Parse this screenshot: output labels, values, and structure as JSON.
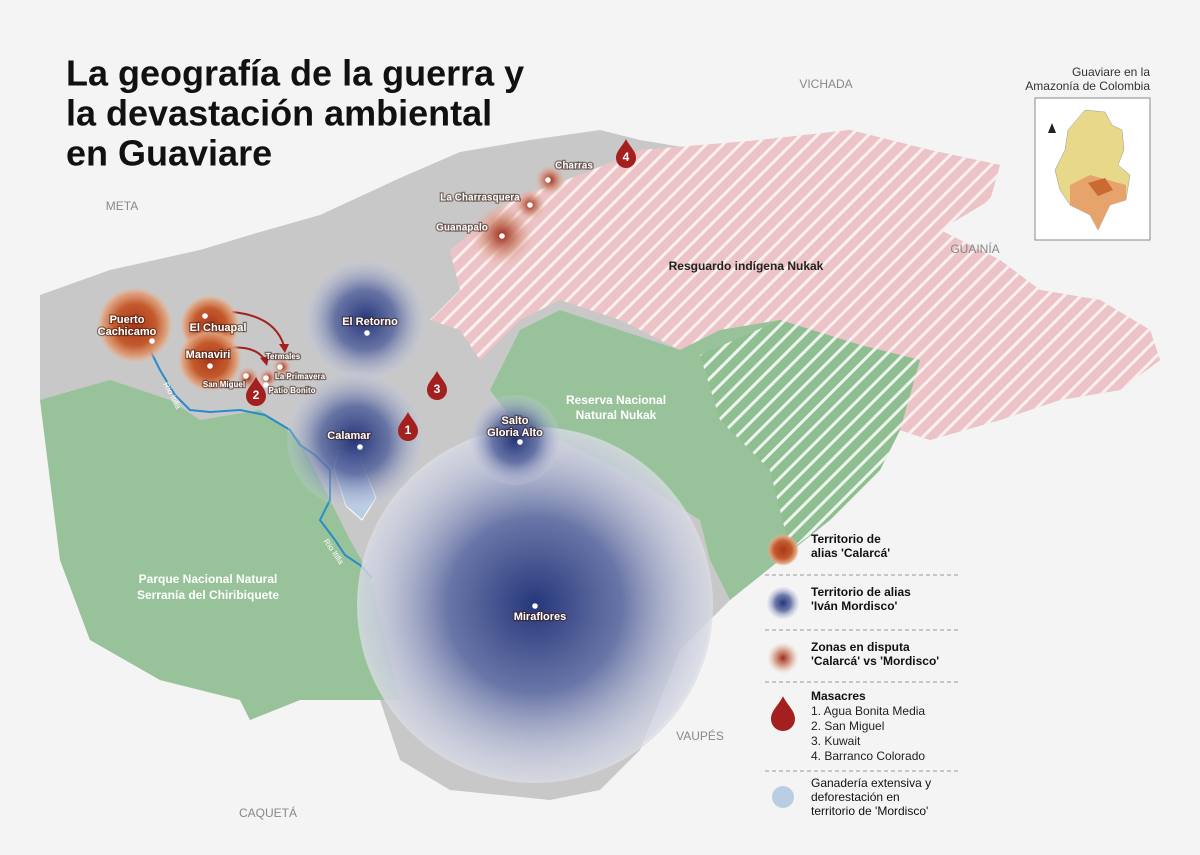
{
  "title_lines": [
    "La geografía de la guerra y",
    "la devastación ambiental",
    "en Guaviare"
  ],
  "inset": {
    "title_lines": [
      "Guaviare en la",
      "Amazonía de Colombia"
    ]
  },
  "regions": [
    "VICHADA",
    "META",
    "GUAINÍA",
    "VAUPÉS",
    "CAQUETÁ"
  ],
  "areas": {
    "resguardo": [
      "Resguardo indígena Nukak"
    ],
    "reserva": [
      "Reserva Nacional",
      "Natural Nukak"
    ],
    "parque": [
      "Parque Nacional Natural",
      "Serranía del Chiribiquete"
    ]
  },
  "places": [
    {
      "lines": [
        "Puerto",
        "Cachicamo"
      ]
    },
    {
      "lines": [
        "El Chuapal"
      ]
    },
    {
      "lines": [
        "Manaviri"
      ]
    },
    {
      "lines": [
        "San Miguel"
      ]
    },
    {
      "lines": [
        "Termales"
      ]
    },
    {
      "lines": [
        "La Primavera"
      ]
    },
    {
      "lines": [
        "Patio Bonito"
      ]
    },
    {
      "lines": [
        "El Retorno"
      ]
    },
    {
      "lines": [
        "Calamar"
      ]
    },
    {
      "lines": [
        "Salto",
        "Gloria Alto"
      ]
    },
    {
      "lines": [
        "Miraflores"
      ]
    },
    {
      "lines": [
        "Charras"
      ]
    },
    {
      "lines": [
        "La Charrasquera"
      ]
    },
    {
      "lines": [
        "Guanapalo"
      ]
    }
  ],
  "rivers": [
    "Río Itilla",
    "Río Itilla"
  ],
  "massacres": [
    "1",
    "2",
    "3",
    "4"
  ],
  "legend": [
    {
      "lines": [
        "Territorio de",
        "alias 'Calarcá'"
      ]
    },
    {
      "lines": [
        "Territorio de alias",
        "'Iván Mordisco'"
      ]
    },
    {
      "lines": [
        "Zonas en disputa",
        "'Calarcá' vs 'Mordisco'"
      ]
    },
    {
      "lines": [
        "Masacres"
      ],
      "items": [
        "1. Agua Bonita Media",
        "2. San Miguel",
        "3. Kuwait",
        "4. Barranco Colorado"
      ]
    },
    {
      "lines": [
        "Ganadería extensiva y",
        "deforestación en",
        "territorio de 'Mordisco'"
      ]
    }
  ]
}
